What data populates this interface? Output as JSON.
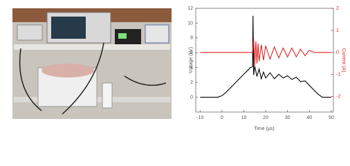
{
  "chart_data": {
    "type": "line",
    "x_label": "Time (μs)",
    "y_label": "Voltage (kV)",
    "y2_label": "Current (A)",
    "xlim": [
      -12,
      51
    ],
    "xticks": [
      -10,
      0,
      10,
      20,
      30,
      40,
      50
    ],
    "ylim": [
      -2,
      12
    ],
    "yticks": [
      0,
      2,
      4,
      6,
      8,
      10,
      12
    ],
    "y2lim": [
      -2.7,
      2
    ],
    "y2ticks": [
      -2,
      -1,
      0,
      1,
      2
    ],
    "series": [
      {
        "name": "Voltage",
        "color": "#000000",
        "x": [
          -10,
          -5,
          -2,
          0,
          2,
          4,
          6,
          8,
          10,
          12,
          13,
          14,
          14.2,
          14.5,
          15,
          16,
          17,
          18,
          19,
          20,
          22,
          24,
          26,
          28,
          30,
          32,
          34,
          36,
          38,
          40,
          42,
          44,
          46,
          48,
          50
        ],
        "values": [
          0,
          0,
          0,
          0.2,
          0.7,
          1.3,
          1.9,
          2.5,
          3.1,
          3.7,
          4.0,
          4.1,
          11,
          3,
          4.2,
          2.8,
          3.8,
          2.5,
          3.4,
          2.6,
          3.3,
          2.5,
          3.1,
          2.6,
          2.9,
          2.4,
          2.7,
          2.1,
          2.2,
          1.6,
          1.0,
          0.4,
          0,
          0,
          0
        ]
      },
      {
        "name": "Current",
        "color": "#e02020",
        "axis": "y2",
        "x": [
          -10,
          0,
          10,
          14,
          14.5,
          15,
          15.5,
          16,
          16.5,
          17,
          18,
          19,
          20,
          22,
          24,
          26,
          28,
          30,
          32,
          34,
          36,
          38,
          40,
          42,
          50
        ],
        "values": [
          0,
          0,
          0,
          0,
          0.6,
          -0.6,
          0.5,
          -0.5,
          0.4,
          -0.4,
          0.35,
          -0.35,
          0.3,
          -0.3,
          0.25,
          -0.25,
          0.2,
          -0.2,
          0.2,
          -0.2,
          0.15,
          -0.15,
          0.1,
          0,
          0
        ]
      }
    ]
  }
}
